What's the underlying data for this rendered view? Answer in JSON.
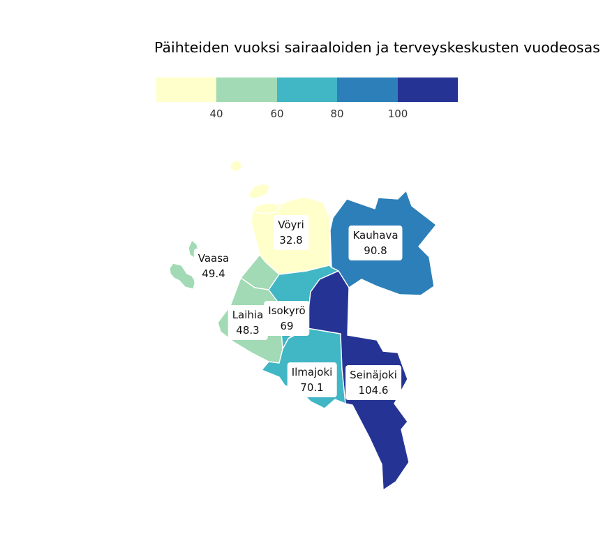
{
  "title": "Päihteiden vuoksi sairaaloiden ja terveyskeskusten vuodeosas",
  "legend": {
    "colors": [
      "#ffffcc",
      "#a1dab4",
      "#41b6c4",
      "#2c7fb8",
      "#253494"
    ],
    "ticks": [
      "40",
      "60",
      "80",
      "100"
    ],
    "breaks": [
      40,
      60,
      80,
      100
    ],
    "range": [
      20,
      120
    ]
  },
  "regions": [
    {
      "name": "Vöyri",
      "value": "32.8"
    },
    {
      "name": "Kauhava",
      "value": "90.8"
    },
    {
      "name": "Vaasa",
      "value": "49.4"
    },
    {
      "name": "Laihia",
      "value": "48.3"
    },
    {
      "name": "Isokyrö",
      "value": "69"
    },
    {
      "name": "Ilmajoki",
      "value": "70.1"
    },
    {
      "name": "Seinäjoki",
      "value": "104.6"
    }
  ]
}
